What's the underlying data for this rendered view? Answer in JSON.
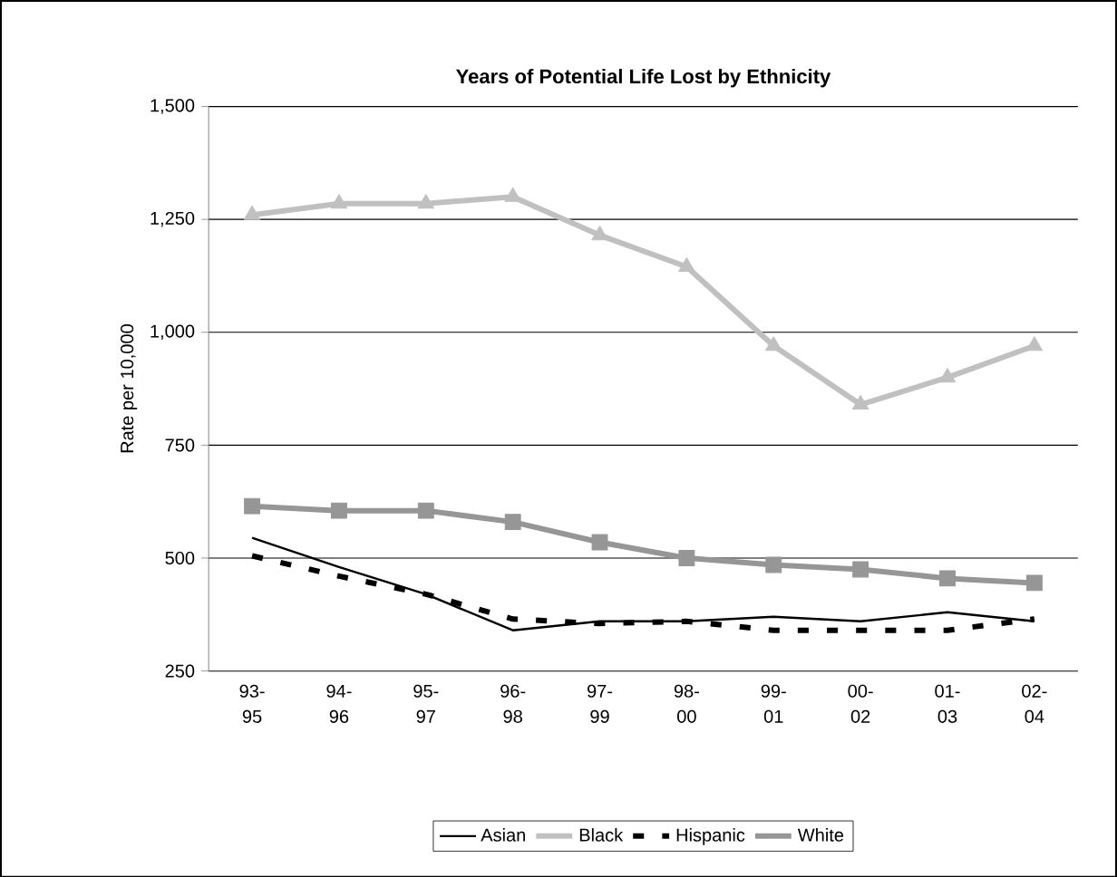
{
  "chart_data": {
    "type": "line",
    "title": "Years of Potential Life Lost by Ethnicity",
    "ylabel": "Rate per 10,000",
    "categories": [
      "93-95",
      "94-96",
      "95-97",
      "96-98",
      "97-99",
      "98-00",
      "99-01",
      "00-02",
      "01-03",
      "02-04"
    ],
    "series": [
      {
        "name": "Asian",
        "color": "#000000",
        "line_style": "solid",
        "marker": "none",
        "values": [
          545,
          480,
          420,
          340,
          360,
          360,
          370,
          360,
          380,
          360
        ]
      },
      {
        "name": "Black",
        "color": "#c0c0c0",
        "line_style": "solid",
        "marker": "triangle",
        "values": [
          1260,
          1285,
          1285,
          1300,
          1215,
          1145,
          970,
          840,
          900,
          970
        ]
      },
      {
        "name": "Hispanic",
        "color": "#000000",
        "line_style": "dashed",
        "marker": "none",
        "values": [
          505,
          460,
          420,
          365,
          355,
          360,
          340,
          340,
          340,
          365
        ]
      },
      {
        "name": "White",
        "color": "#969696",
        "line_style": "solid",
        "marker": "square",
        "values": [
          615,
          605,
          605,
          580,
          535,
          500,
          485,
          475,
          455,
          445
        ]
      }
    ],
    "ylim": [
      250,
      1500
    ],
    "yticks": [
      {
        "value": 250,
        "label": "250"
      },
      {
        "value": 500,
        "label": "500"
      },
      {
        "value": 750,
        "label": "750"
      },
      {
        "value": 1000,
        "label": "1,000"
      },
      {
        "value": 1250,
        "label": "1,250"
      },
      {
        "value": 1500,
        "label": "1,500"
      }
    ],
    "grid": "y",
    "legend": "bottom"
  }
}
